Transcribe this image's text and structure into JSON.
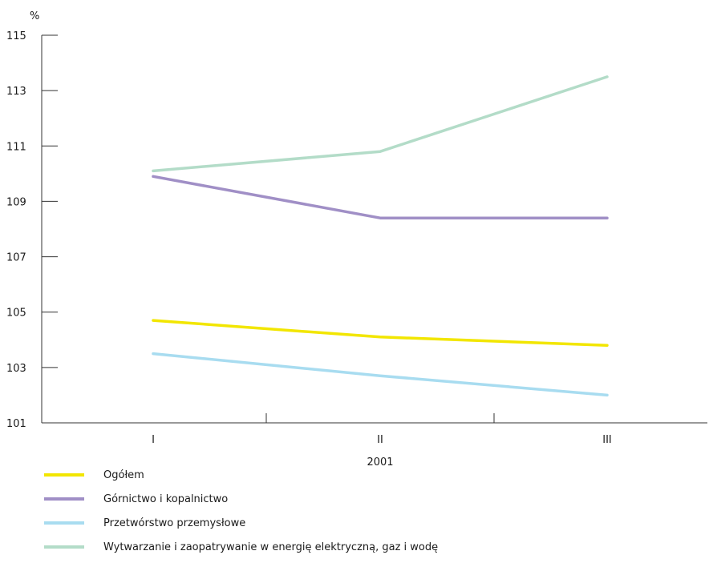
{
  "chart_data": {
    "type": "line",
    "ylabel": "%",
    "xlabel": "2001",
    "categories": [
      "I",
      "II",
      "III"
    ],
    "ylim": [
      101,
      115
    ],
    "yticks": [
      101,
      103,
      105,
      107,
      109,
      111,
      113,
      115
    ],
    "grid": false,
    "legend_position": "bottom",
    "series": [
      {
        "name": "Ogółem",
        "color": "#f2e600",
        "values": [
          104.7,
          104.1,
          103.8
        ]
      },
      {
        "name": "Górnictwo i kopalnictwo",
        "color": "#a08fc6",
        "values": [
          109.9,
          108.4,
          108.4
        ]
      },
      {
        "name": "Przetwórstwo przemysłowe",
        "color": "#a8dcf0",
        "values": [
          103.5,
          102.7,
          102.0
        ]
      },
      {
        "name": "Wytwarzanie i zaopatrywanie w energię elektryczną, gaz i wodę",
        "color": "#b3dcc8",
        "values": [
          110.1,
          110.8,
          113.5
        ]
      }
    ]
  }
}
